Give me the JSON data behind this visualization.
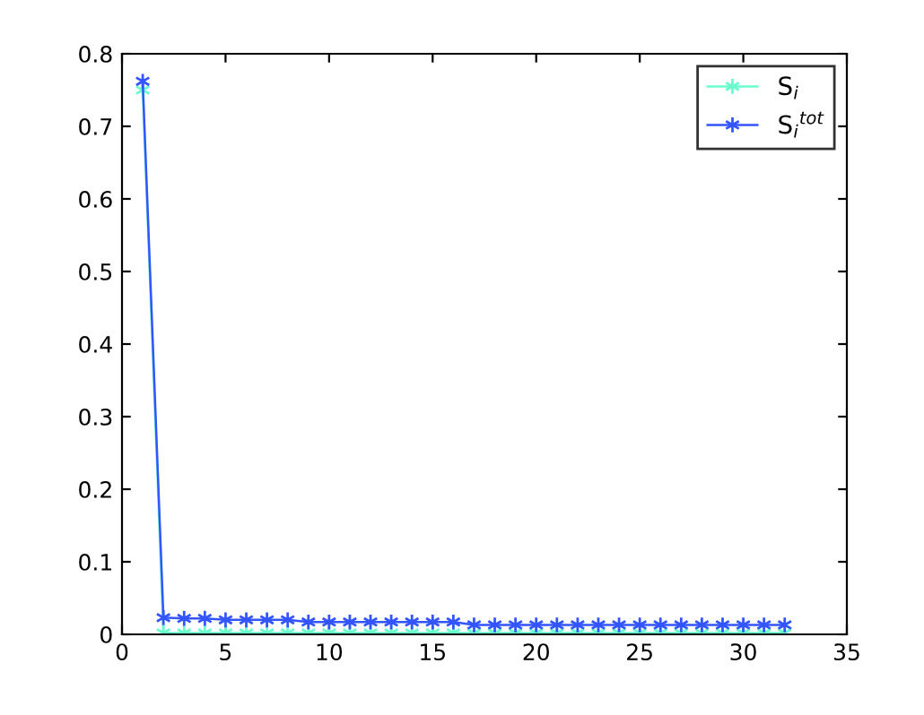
{
  "chart_data": {
    "type": "line",
    "x": [
      1,
      2,
      3,
      4,
      5,
      6,
      7,
      8,
      9,
      10,
      11,
      12,
      13,
      14,
      15,
      16,
      17,
      18,
      19,
      20,
      21,
      22,
      23,
      24,
      25,
      26,
      27,
      28,
      29,
      30,
      31,
      32
    ],
    "series": [
      {
        "name": "S$_{i}$",
        "color": "#66ffcc",
        "values": [
          0.75,
          0.002,
          0.002,
          0.002,
          0.002,
          0.002,
          0.002,
          0.002,
          0.002,
          0.002,
          0.002,
          0.002,
          0.002,
          0.002,
          0.002,
          0.002,
          0.002,
          0.002,
          0.002,
          0.002,
          0.002,
          0.002,
          0.002,
          0.002,
          0.002,
          0.002,
          0.002,
          0.002,
          0.002,
          0.002,
          0.002,
          0.002
        ]
      },
      {
        "name": "S$_{i}$$^{tot}$",
        "color": "#3355ff",
        "values": [
          0.762,
          0.023,
          0.022,
          0.022,
          0.02,
          0.02,
          0.02,
          0.02,
          0.017,
          0.017,
          0.017,
          0.017,
          0.017,
          0.017,
          0.017,
          0.017,
          0.013,
          0.013,
          0.013,
          0.013,
          0.013,
          0.013,
          0.013,
          0.013,
          0.013,
          0.013,
          0.013,
          0.013,
          0.013,
          0.013,
          0.013,
          0.013
        ]
      }
    ],
    "xlim": [
      0,
      35
    ],
    "xticks": [
      0,
      5,
      10,
      15,
      20,
      25,
      30,
      35
    ],
    "ylim": [
      0,
      0.8
    ],
    "yticks": [
      0,
      0.1,
      0.2,
      0.3,
      0.4,
      0.5,
      0.6,
      0.7,
      0.8
    ],
    "marker": "cross",
    "line_style": "solid",
    "legend": "top right",
    "grid": false
  }
}
